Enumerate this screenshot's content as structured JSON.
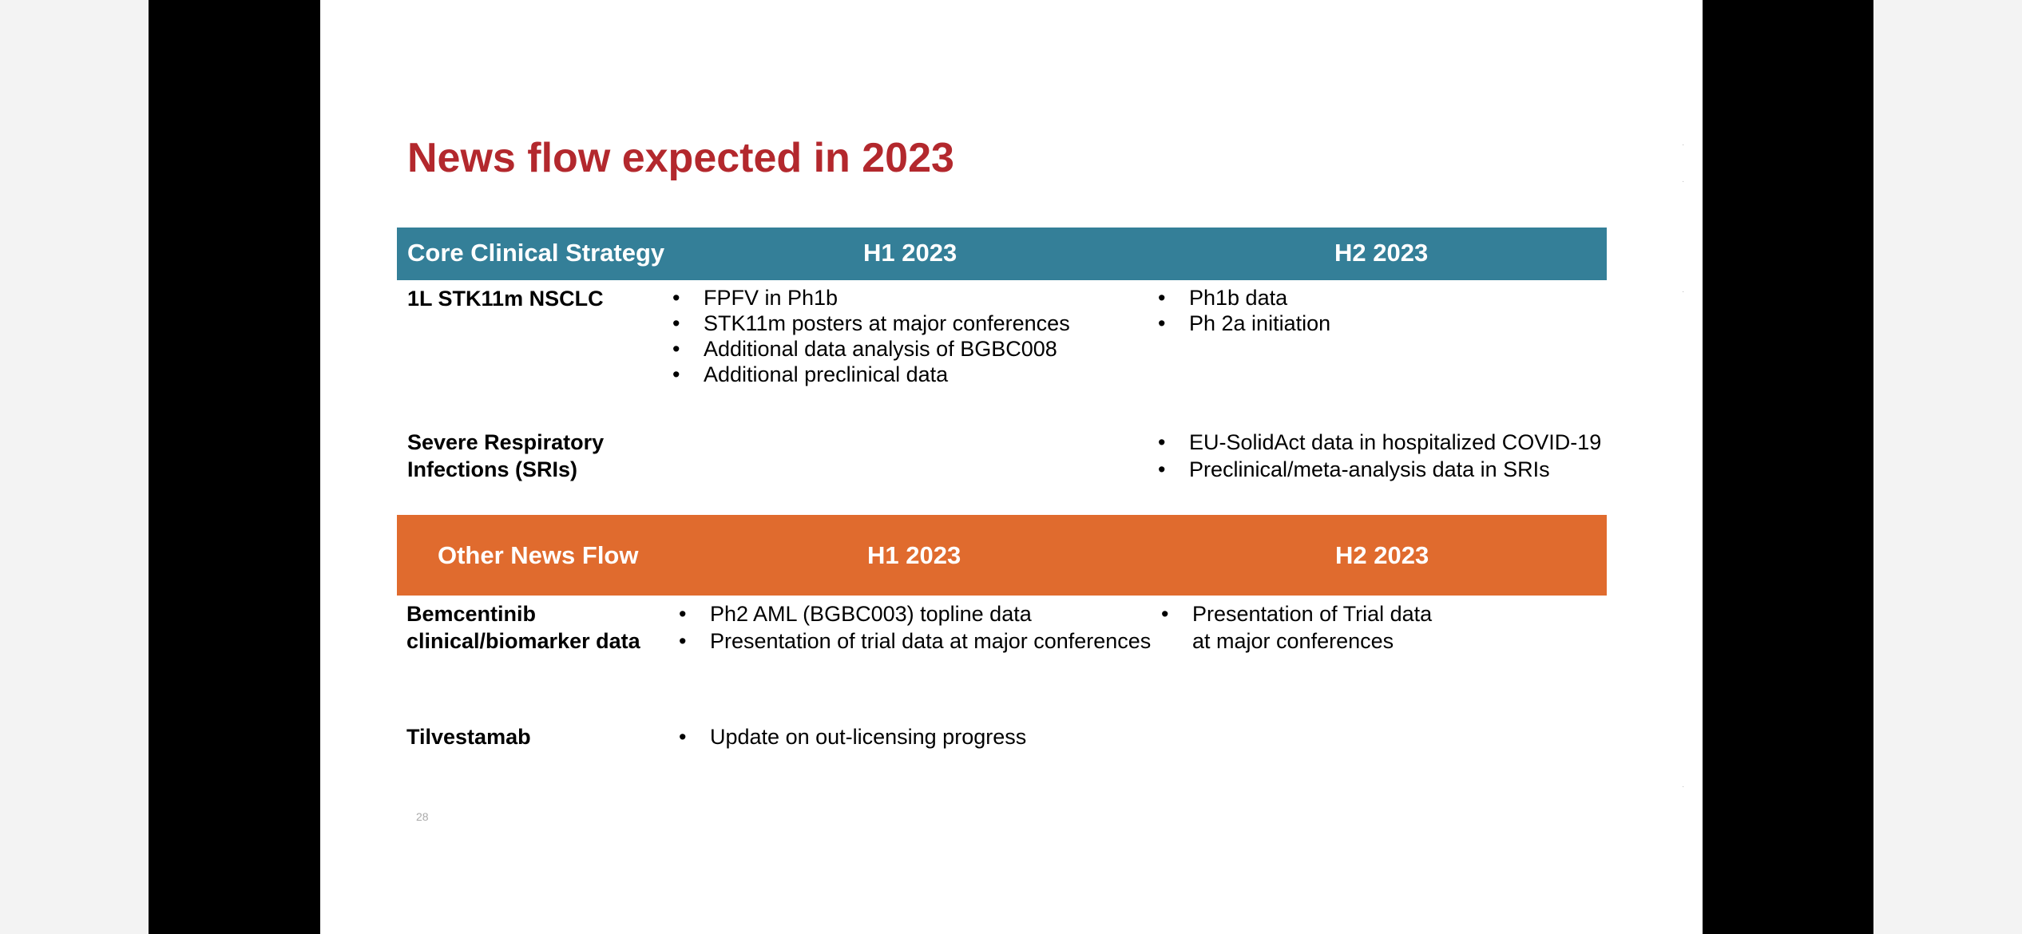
{
  "title": "News flow expected in 2023",
  "core": {
    "header": {
      "label": "Core Clinical Strategy",
      "h1": "H1 2023",
      "h2": "H2 2023"
    },
    "rows": [
      {
        "label_lines": [
          "1L STK11m NSCLC"
        ],
        "h1": [
          "FPFV in Ph1b",
          "STK11m posters at major conferences",
          "Additional data analysis of BGBC008",
          "Additional preclinical data"
        ],
        "h2": [
          "Ph1b data",
          "Ph 2a initiation"
        ]
      },
      {
        "label_lines": [
          "Severe Respiratory",
          "Infections (SRIs)"
        ],
        "h2": [
          "EU-SolidAct data in hospitalized COVID-19",
          "Preclinical/meta-analysis data in SRIs"
        ]
      }
    ]
  },
  "other": {
    "header": {
      "label": "Other News Flow",
      "h1": "H1 2023",
      "h2": "H2 2023"
    },
    "rows": [
      {
        "label_lines": [
          "Bemcentinib",
          "clinical/biomarker data"
        ],
        "h1": [
          "Ph2 AML (BGBC003) topline data",
          "Presentation of trial data at major conferences"
        ],
        "h2_lines": [
          "Presentation of Trial data",
          "at major conferences"
        ]
      },
      {
        "label_lines": [
          "Tilvestamab"
        ],
        "h1": [
          "Update on out-licensing progress"
        ]
      }
    ]
  },
  "page_number": "28",
  "colors": {
    "title": "#b3282d",
    "teal_band": "#347f98",
    "orange_band": "#e06b2e"
  }
}
